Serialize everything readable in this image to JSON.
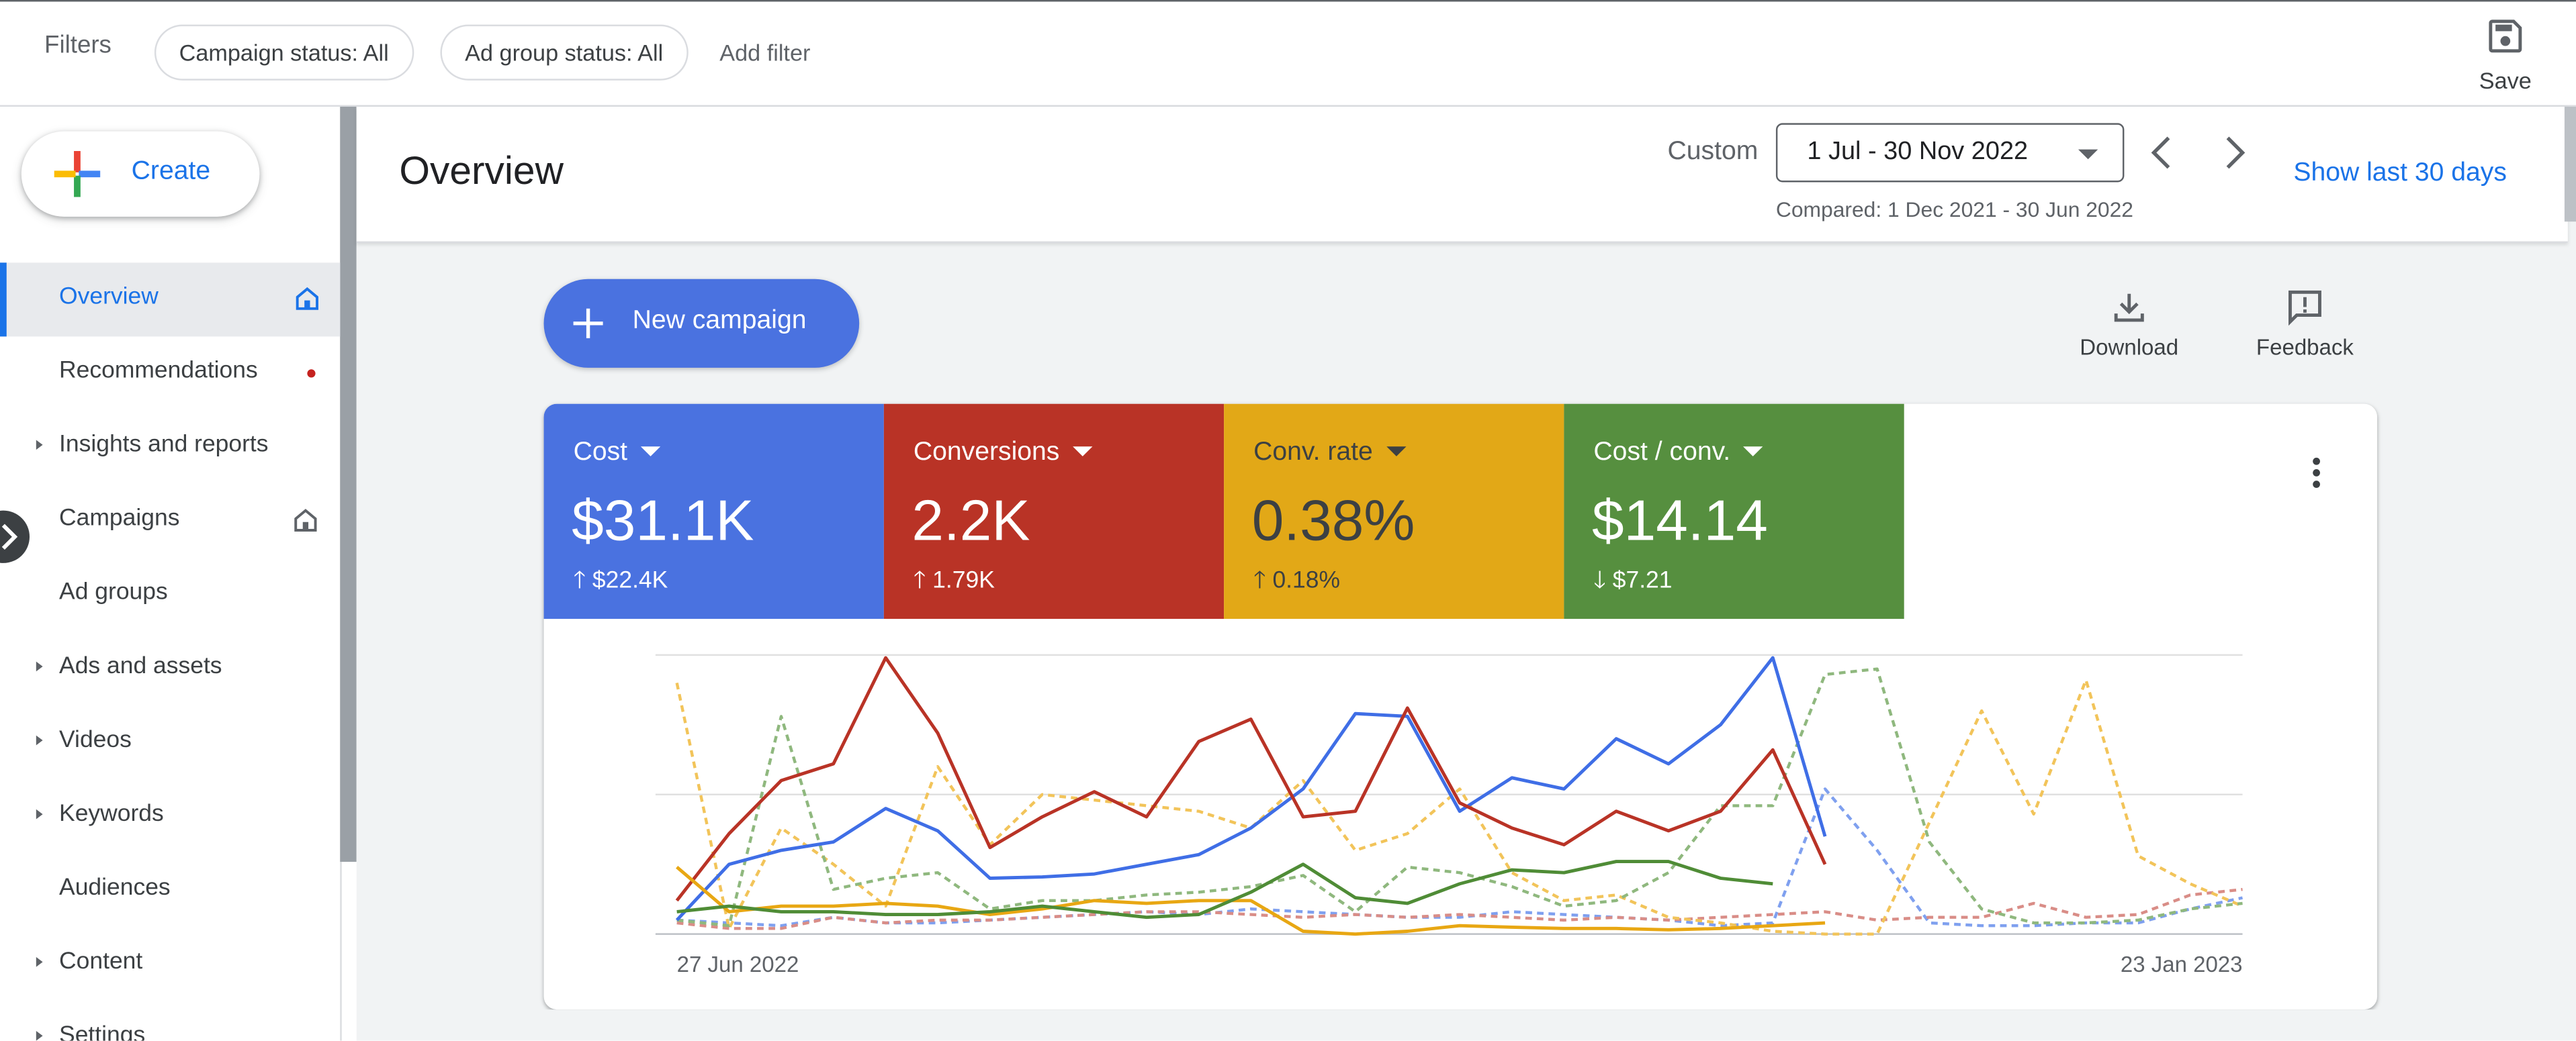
{
  "filters": {
    "label": "Filters",
    "chips": [
      "Campaign status: All",
      "Ad group status: All"
    ],
    "add_filter": "Add filter",
    "save_label": "Save"
  },
  "sidebar": {
    "create_label": "Create",
    "items": [
      {
        "label": "Overview",
        "active": true,
        "icon": "home-icon"
      },
      {
        "label": "Recommendations",
        "badge": "red-dot"
      },
      {
        "label": "Insights and reports",
        "expandable": true
      },
      {
        "label": "Campaigns",
        "icon": "home-icon"
      },
      {
        "label": "Ad groups"
      },
      {
        "label": "Ads and assets",
        "expandable": true
      },
      {
        "label": "Videos",
        "expandable": true
      },
      {
        "label": "Keywords",
        "expandable": true
      },
      {
        "label": "Audiences"
      },
      {
        "label": "Content",
        "expandable": true
      },
      {
        "label": "Settings",
        "expandable": true
      }
    ]
  },
  "header": {
    "title": "Overview",
    "custom_label": "Custom",
    "date_range": "1 Jul - 30 Nov 2022",
    "compared": "Compared: 1 Dec 2021 - 30 Jun 2022",
    "show_last": "Show last 30 days"
  },
  "actions": {
    "new_campaign": "New campaign",
    "download": "Download",
    "feedback": "Feedback"
  },
  "metrics": [
    {
      "name": "Cost",
      "value": "$31.1K",
      "delta": "$22.4K",
      "direction": "up",
      "color": "#4a72e0"
    },
    {
      "name": "Conversions",
      "value": "2.2K",
      "delta": "1.79K",
      "direction": "up",
      "color": "#b93326"
    },
    {
      "name": "Conv. rate",
      "value": "0.38%",
      "delta": "0.18%",
      "direction": "up",
      "color": "#e2a817",
      "text_color": "#3c4043"
    },
    {
      "name": "Cost / conv.",
      "value": "$14.14",
      "delta": "$7.21",
      "direction": "down",
      "color": "#568f3f"
    }
  ],
  "chart_data": {
    "type": "line",
    "x_start_label": "27 Jun 2022",
    "x_end_label": "23 Jan 2023",
    "grid": true,
    "n_points": 31,
    "series": [
      {
        "metric": "Cost",
        "period": "current",
        "color": "#3f6ee6",
        "style": "solid",
        "values": [
          0.05,
          0.25,
          0.3,
          0.33,
          0.45,
          0.37,
          0.2,
          0.205,
          0.215,
          0.25,
          0.285,
          0.38,
          0.52,
          0.79,
          0.78,
          0.44,
          0.56,
          0.52,
          0.7,
          0.61,
          0.75,
          0.99,
          0.35
        ]
      },
      {
        "metric": "Conversions",
        "period": "current",
        "color": "#b93326",
        "style": "solid",
        "values": [
          0.12,
          0.36,
          0.55,
          0.61,
          0.99,
          0.72,
          0.31,
          0.42,
          0.51,
          0.42,
          0.69,
          0.77,
          0.42,
          0.44,
          0.81,
          0.47,
          0.38,
          0.32,
          0.44,
          0.37,
          0.44,
          0.66,
          0.25
        ]
      },
      {
        "metric": "Conv. rate",
        "period": "current",
        "color": "#e8a713",
        "style": "solid",
        "values": [
          0.24,
          0.08,
          0.1,
          0.1,
          0.11,
          0.1,
          0.07,
          0.09,
          0.12,
          0.11,
          0.12,
          0.12,
          0.01,
          0.0,
          0.01,
          0.03,
          0.025,
          0.02,
          0.02,
          0.015,
          0.02,
          0.03,
          0.04
        ]
      },
      {
        "metric": "Cost / conv.",
        "period": "current",
        "color": "#4f8c36",
        "style": "solid",
        "values": [
          0.08,
          0.1,
          0.08,
          0.08,
          0.07,
          0.07,
          0.08,
          0.1,
          0.08,
          0.06,
          0.07,
          0.15,
          0.25,
          0.13,
          0.11,
          0.18,
          0.23,
          0.22,
          0.26,
          0.26,
          0.2,
          0.18
        ]
      },
      {
        "metric": "Cost",
        "period": "previous",
        "color": "#7fa0ef",
        "style": "dashed",
        "values": [
          0.05,
          0.04,
          0.03,
          0.06,
          0.04,
          0.04,
          0.05,
          0.06,
          0.07,
          0.08,
          0.07,
          0.09,
          0.08,
          0.07,
          0.06,
          0.06,
          0.08,
          0.07,
          0.06,
          0.05,
          0.03,
          0.04,
          0.52,
          0.3,
          0.04,
          0.03,
          0.03,
          0.04,
          0.04,
          0.09,
          0.13
        ]
      },
      {
        "metric": "Conversions",
        "period": "previous",
        "color": "#d98d87",
        "style": "dashed",
        "values": [
          0.04,
          0.02,
          0.02,
          0.06,
          0.04,
          0.05,
          0.05,
          0.06,
          0.07,
          0.08,
          0.08,
          0.07,
          0.06,
          0.07,
          0.06,
          0.07,
          0.06,
          0.05,
          0.06,
          0.05,
          0.06,
          0.07,
          0.08,
          0.05,
          0.06,
          0.06,
          0.11,
          0.06,
          0.07,
          0.14,
          0.16
        ]
      },
      {
        "metric": "Conv. rate",
        "period": "previous",
        "color": "#f2c45a",
        "style": "dashed",
        "values": [
          0.9,
          0.02,
          0.38,
          0.25,
          0.1,
          0.6,
          0.32,
          0.5,
          0.48,
          0.46,
          0.44,
          0.38,
          0.55,
          0.3,
          0.36,
          0.52,
          0.22,
          0.12,
          0.14,
          0.06,
          0.04,
          0.01,
          0.0,
          0.0,
          0.4,
          0.8,
          0.43,
          0.91,
          0.28,
          0.18,
          0.1
        ]
      },
      {
        "metric": "Cost / conv.",
        "period": "previous",
        "color": "#8fb87e",
        "style": "dashed",
        "values": [
          0.05,
          0.03,
          0.78,
          0.16,
          0.2,
          0.22,
          0.09,
          0.12,
          0.12,
          0.14,
          0.15,
          0.17,
          0.21,
          0.08,
          0.24,
          0.22,
          0.17,
          0.1,
          0.12,
          0.22,
          0.46,
          0.46,
          0.93,
          0.95,
          0.33,
          0.09,
          0.04,
          0.04,
          0.05,
          0.09,
          0.11
        ]
      }
    ]
  }
}
